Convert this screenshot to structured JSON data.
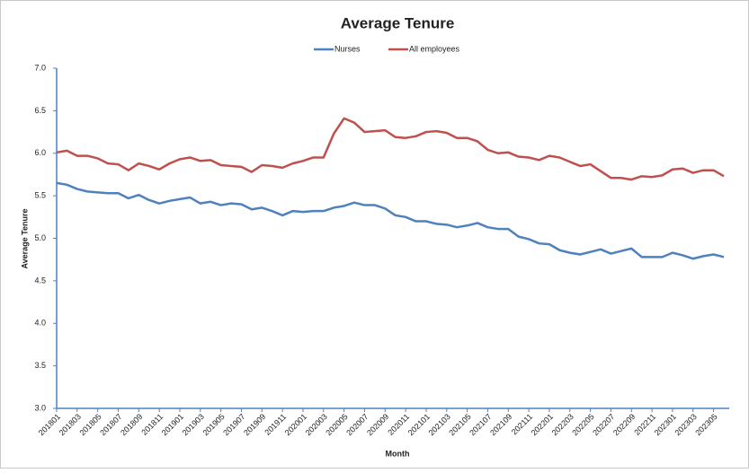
{
  "chart_data": {
    "type": "line",
    "title": "Average Tenure",
    "x_label": "Month",
    "y_label": "Average Tenure",
    "categories": [
      "201801",
      null,
      "201803",
      null,
      "201805",
      null,
      "201807",
      null,
      "201809",
      null,
      "201811",
      null,
      "201901",
      null,
      "201903",
      null,
      "201905",
      null,
      "201907",
      null,
      "201909",
      null,
      "201911",
      null,
      "202001",
      null,
      "202003",
      null,
      "202005",
      null,
      "202007",
      null,
      "202009",
      null,
      "202011",
      null,
      "202101",
      null,
      "202103",
      null,
      "202105",
      null,
      "202107",
      null,
      "202109",
      null,
      "202111",
      null,
      "202201",
      null,
      "202203",
      null,
      "202205",
      null,
      "202207",
      null,
      "202209",
      null,
      "202211",
      null,
      "202301",
      null,
      "202303",
      null,
      "202305",
      null
    ],
    "series": [
      {
        "name": "Nurses",
        "color": "#4f81bd",
        "values": [
          5.65,
          5.63,
          5.58,
          5.55,
          5.54,
          5.53,
          5.53,
          5.47,
          5.51,
          5.45,
          5.41,
          5.44,
          5.46,
          5.48,
          5.41,
          5.43,
          5.39,
          5.41,
          5.4,
          5.34,
          5.36,
          5.32,
          5.27,
          5.32,
          5.31,
          5.32,
          5.32,
          5.36,
          5.38,
          5.42,
          5.39,
          5.39,
          5.35,
          5.27,
          5.25,
          5.2,
          5.2,
          5.17,
          5.16,
          5.13,
          5.15,
          5.18,
          5.13,
          5.11,
          5.11,
          5.02,
          4.99,
          4.94,
          4.93,
          4.86,
          4.83,
          4.81,
          4.84,
          4.87,
          4.82,
          4.85,
          4.88,
          4.78,
          4.78,
          4.78,
          4.83,
          4.8,
          4.76,
          4.79,
          4.81,
          4.78
        ]
      },
      {
        "name": "All employees",
        "color": "#c0504d",
        "values": [
          6.01,
          6.03,
          5.97,
          5.97,
          5.94,
          5.88,
          5.87,
          5.8,
          5.88,
          5.85,
          5.81,
          5.88,
          5.93,
          5.95,
          5.91,
          5.92,
          5.86,
          5.85,
          5.84,
          5.78,
          5.86,
          5.85,
          5.83,
          5.88,
          5.91,
          5.95,
          5.95,
          6.23,
          6.41,
          6.36,
          6.25,
          6.26,
          6.27,
          6.19,
          6.18,
          6.2,
          6.25,
          6.26,
          6.24,
          6.18,
          6.18,
          6.14,
          6.04,
          6.0,
          6.01,
          5.96,
          5.95,
          5.92,
          5.97,
          5.95,
          5.9,
          5.85,
          5.87,
          5.79,
          5.71,
          5.71,
          5.69,
          5.73,
          5.72,
          5.74,
          5.81,
          5.82,
          5.77,
          5.8,
          5.8,
          5.73
        ]
      }
    ],
    "ylim": [
      3,
      7
    ],
    "yticks": [
      {
        "value": 3,
        "label": "3.0"
      },
      {
        "value": 3.5,
        "label": "3.5"
      },
      {
        "value": 4,
        "label": "4.0"
      },
      {
        "value": 4.5,
        "label": "4.5"
      },
      {
        "value": 5,
        "label": "5.0"
      },
      {
        "value": 5.5,
        "label": "5.5"
      },
      {
        "value": 6,
        "label": "6.0"
      },
      {
        "value": 6.5,
        "label": "6.5"
      },
      {
        "value": 7,
        "label": "7.0"
      }
    ],
    "grid": false,
    "legend": "top"
  }
}
